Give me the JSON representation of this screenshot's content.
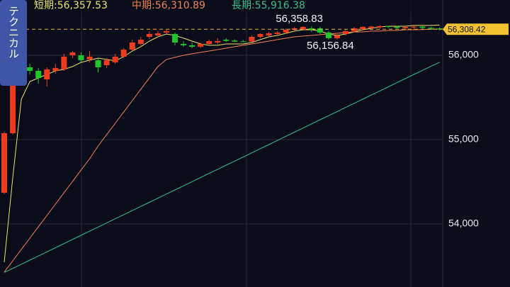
{
  "chart_data": {
    "type": "candlestick",
    "side_tab": "テクニカル",
    "open": [
      54370,
      55076,
      55950,
      55857,
      55815,
      55714,
      55815,
      55832,
      56000,
      56000,
      55950,
      55941,
      55882,
      55916,
      55983,
      56067,
      56134,
      56218,
      56235,
      56269,
      56252,
      56134,
      56118,
      56101,
      56134,
      56151,
      56185,
      56175,
      56165,
      56160,
      56218,
      56235,
      56252,
      56269,
      56302,
      56310,
      56319,
      56319,
      56269,
      56202,
      56252,
      56286,
      56310,
      56320,
      56330,
      56345,
      56338,
      56320,
      56330,
      56340,
      56325,
      56318
    ],
    "high": [
      55093,
      55857,
      55980,
      55899,
      55849,
      55857,
      55899,
      56017,
      56050,
      56034,
      56050,
      55966,
      55966,
      56017,
      56084,
      56185,
      56218,
      56286,
      56286,
      56302,
      56269,
      56168,
      56151,
      56151,
      56185,
      56202,
      56202,
      56190,
      56180,
      56235,
      56260,
      56277,
      56286,
      56319,
      56336,
      56344,
      56344,
      56336,
      56286,
      56252,
      56302,
      56336,
      56344,
      56350,
      56358.83,
      56350,
      56348,
      56345,
      56350,
      56345,
      56335,
      56330
    ],
    "low": [
      54354,
      55059,
      55832,
      55773,
      55664,
      55630,
      55782,
      55815,
      55966,
      55916,
      55916,
      55798,
      55849,
      55899,
      55966,
      56050,
      56101,
      56193,
      56218,
      56252,
      56118,
      56101,
      56084,
      56084,
      56118,
      56134,
      56160,
      56158,
      56156.84,
      56158,
      56202,
      56218,
      56235,
      56252,
      56286,
      56294,
      56277,
      56252,
      56185,
      56185,
      56235,
      56269,
      56294,
      56302,
      56310,
      56320,
      56310,
      56305,
      56300,
      56310,
      56300,
      56295
    ],
    "close": [
      55076,
      55815,
      55857,
      55815,
      55731,
      55832,
      55849,
      55983,
      56034,
      55941,
      55983,
      55857,
      55941,
      55983,
      56067,
      56151,
      56185,
      56252,
      56260,
      56286,
      56151,
      56118,
      56101,
      56134,
      56168,
      56168,
      56170,
      56162,
      56160,
      56218,
      56252,
      56260,
      56269,
      56302,
      56319,
      56336,
      56302,
      56269,
      56202,
      56235,
      56286,
      56319,
      56336,
      56340,
      56345,
      56335,
      56325,
      56335,
      56340,
      56325,
      56315,
      56308.42
    ],
    "up_color": "#ec3b1e",
    "down_color": "#1fc52c",
    "series": [
      {
        "name": "短期:56,357.53",
        "color": "#e9e46a",
        "values": [
          53546,
          54555,
          55479,
          55689,
          55731,
          55773,
          55815,
          55832,
          55866,
          55916,
          55941,
          55966,
          55950,
          55933,
          55983,
          56050,
          56101,
          56168,
          56218,
          56252,
          56235,
          56202,
          56168,
          56134,
          56118,
          56118,
          56134,
          56134,
          56134,
          56151,
          56185,
          56218,
          56235,
          56260,
          56286,
          56302,
          56302,
          56286,
          56252,
          56235,
          56252,
          56277,
          56302,
          56319,
          56336,
          56344,
          56344,
          56344,
          56353,
          56353,
          56353,
          56357.53
        ]
      },
      {
        "name": "中期:56,310.89",
        "color": "#f2825a",
        "values": [
          53429,
          53563,
          53698,
          53832,
          53967,
          54101,
          54235,
          54370,
          54504,
          54639,
          54773,
          54924,
          55059,
          55193,
          55328,
          55462,
          55597,
          55731,
          55866,
          55950,
          55975,
          56000,
          56017,
          56034,
          56050,
          56067,
          56084,
          56101,
          56118,
          56134,
          56151,
          56168,
          56185,
          56202,
          56218,
          56227,
          56235,
          56244,
          56252,
          56260,
          56269,
          56277,
          56277,
          56286,
          56286,
          56294,
          56294,
          56302,
          56302,
          56305,
          56308,
          56310.89
        ]
      },
      {
        "name": "長期:55,916.38",
        "color": "#35c08c",
        "values": [
          53425,
          53473,
          53522,
          53571,
          53620,
          53669,
          53718,
          53767,
          53816,
          53865,
          53914,
          53963,
          54012,
          54061,
          54110,
          54159,
          54207,
          54256,
          54305,
          54354,
          54403,
          54452,
          54501,
          54550,
          54599,
          54648,
          54697,
          54745,
          54794,
          54843,
          54892,
          54941,
          54990,
          55039,
          55088,
          55137,
          55186,
          55235,
          55283,
          55332,
          55381,
          55430,
          55479,
          55528,
          55577,
          55626,
          55675,
          55724,
          55773,
          55821,
          55870,
          55916.38
        ]
      }
    ],
    "ylim": [
      53252,
      56655
    ],
    "yticks": [
      {
        "value": 54000,
        "label": "54,000"
      },
      {
        "value": 55000,
        "label": "55,000"
      },
      {
        "value": 56000,
        "label": "56,000"
      }
    ],
    "grid": true,
    "last_price": {
      "value": 56308.42,
      "label": "56,308.42"
    },
    "high_label": {
      "value": 56358.83,
      "label": "56,358.83"
    },
    "low_label": {
      "value": 56156.84,
      "label": "56,156.84"
    }
  }
}
